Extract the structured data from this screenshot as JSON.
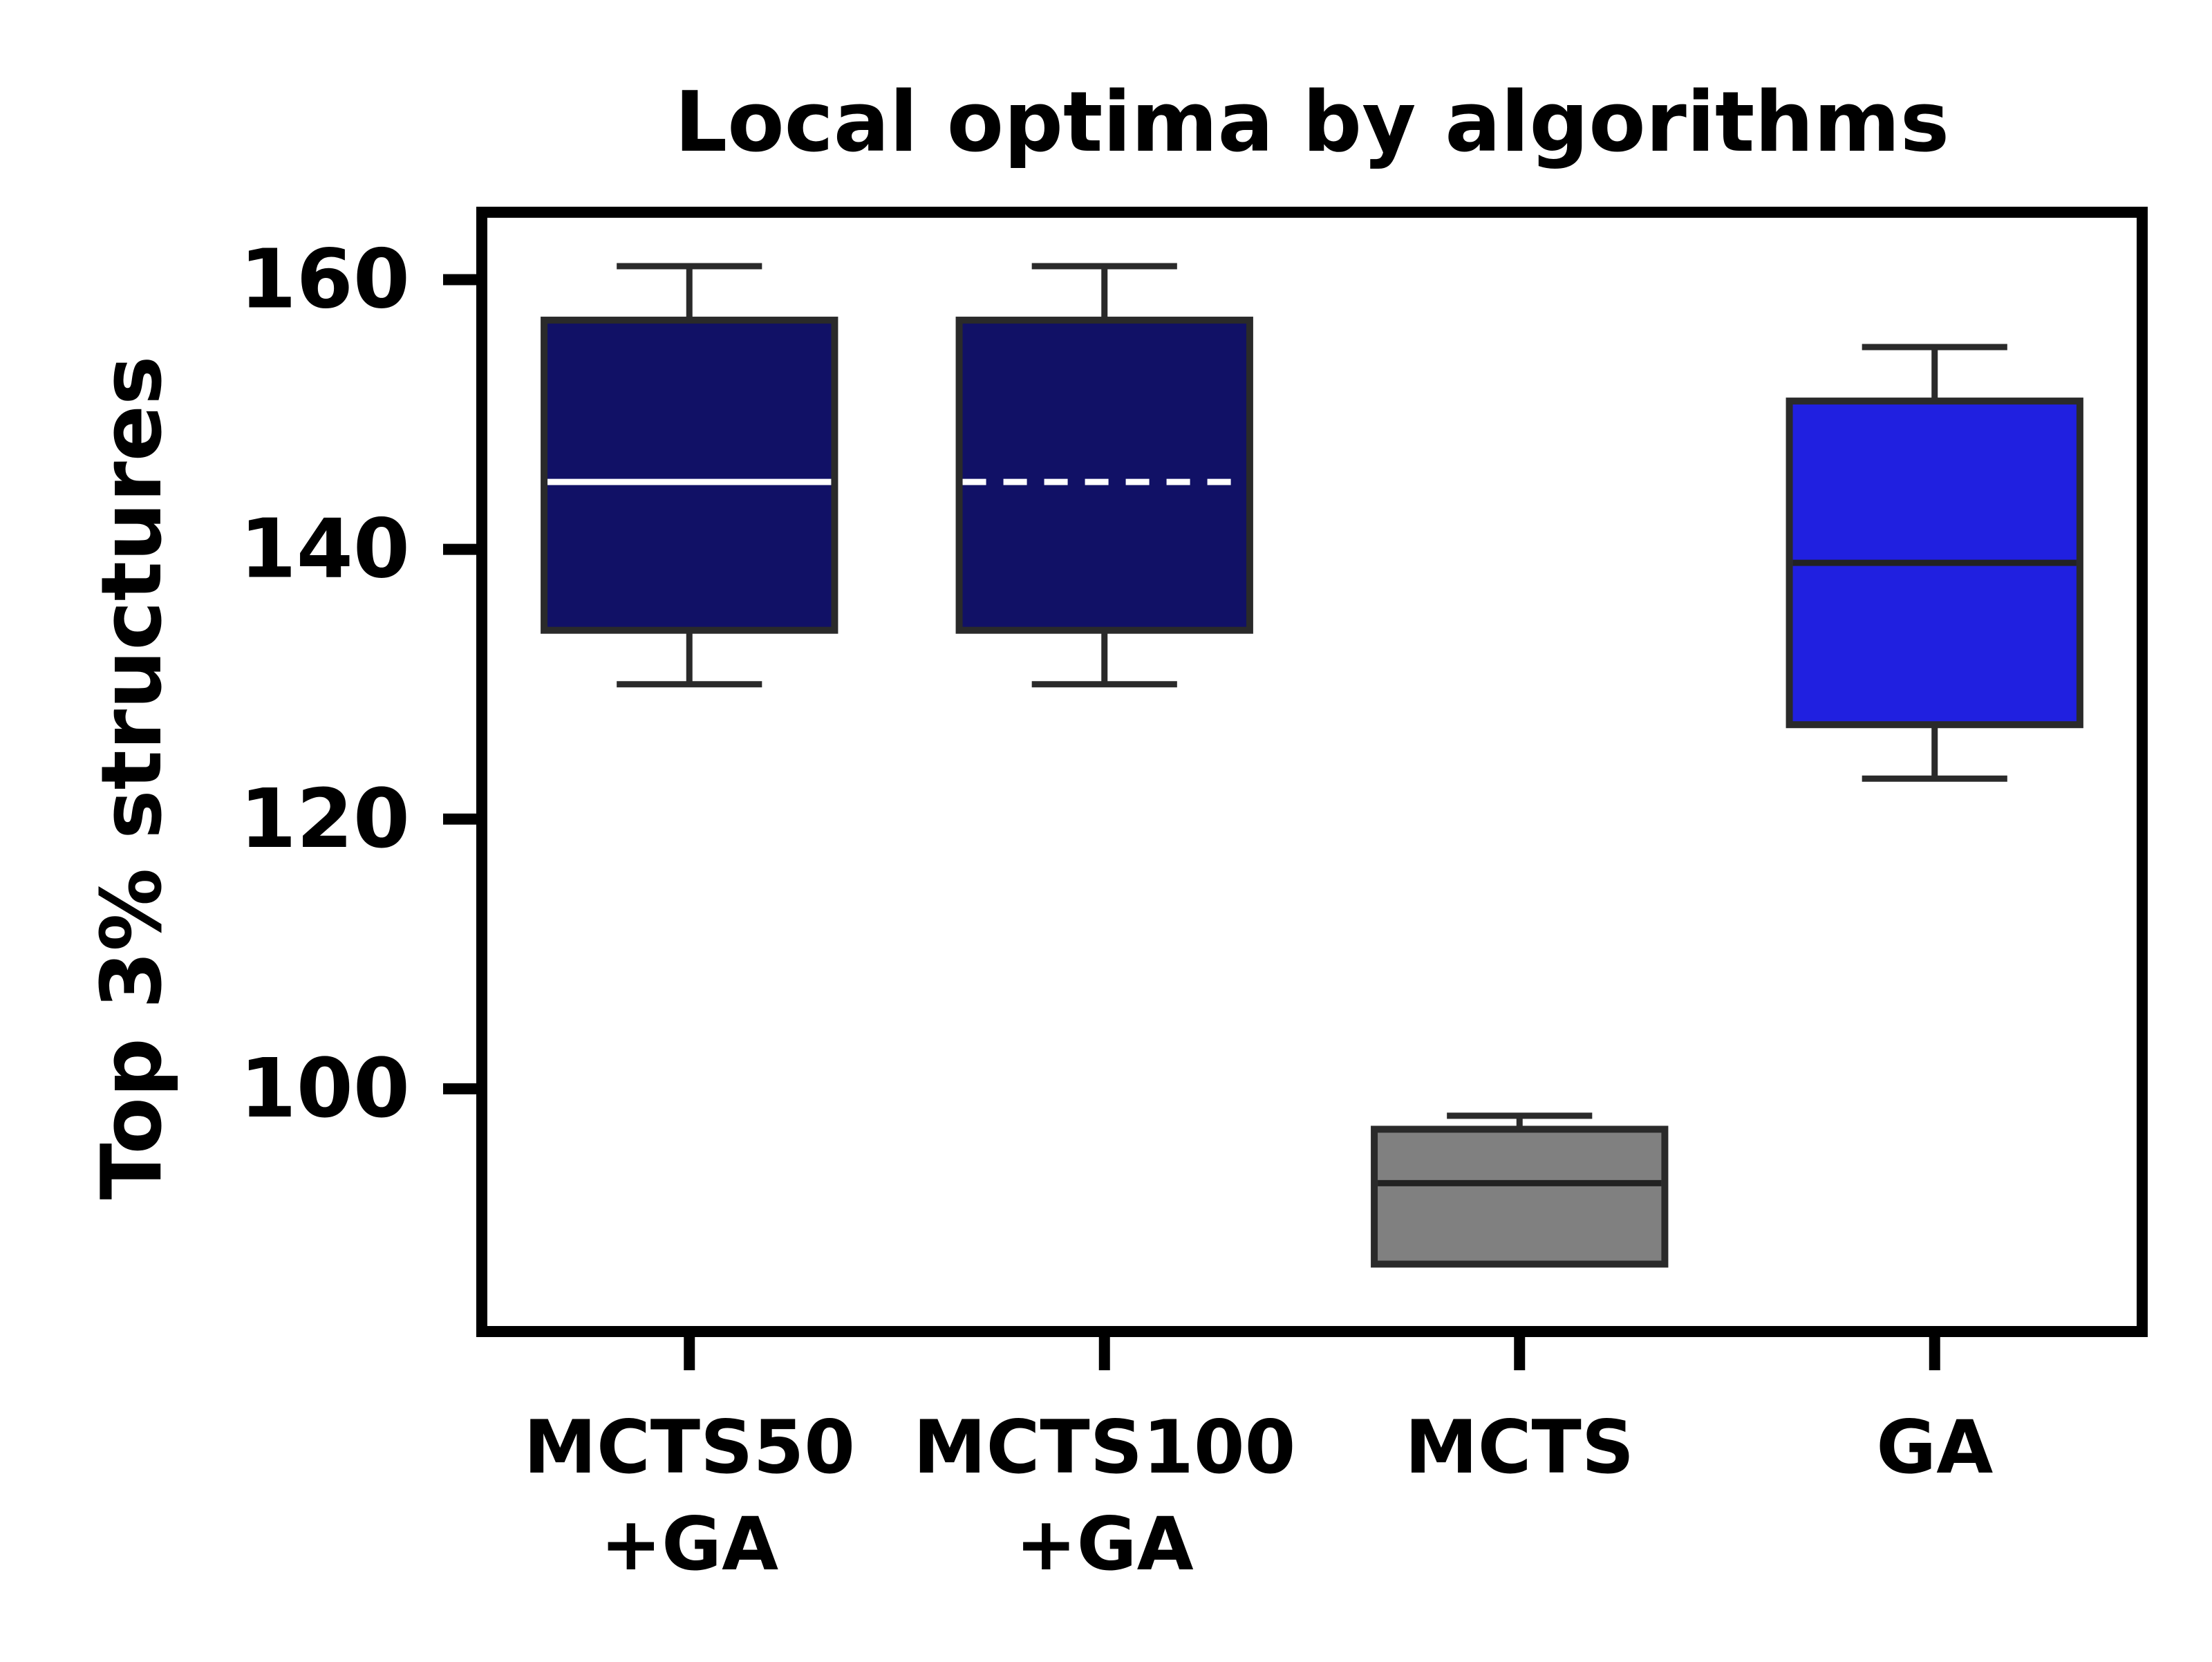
{
  "chart_data": {
    "type": "box",
    "title": "Local optima by algorithms",
    "xlabel": "",
    "ylabel": "Top 3% structures",
    "ylim": [
      82,
      165
    ],
    "yticks": [
      100,
      120,
      140,
      160
    ],
    "grid": false,
    "categories": [
      {
        "label_lines": [
          "MCTS50",
          "+GA"
        ],
        "label": "MCTS50 +GA"
      },
      {
        "label_lines": [
          "MCTS100",
          "+GA"
        ],
        "label": "MCTS100 +GA"
      },
      {
        "label_lines": [
          "MCTS"
        ],
        "label": "MCTS"
      },
      {
        "label_lines": [
          "GA"
        ],
        "label": "GA"
      }
    ],
    "boxes": [
      {
        "whisker_low": 130,
        "q1": 134,
        "median": 145,
        "q3": 157,
        "whisker_high": 161,
        "color": "#111166",
        "median_color": "#ffffff",
        "median_style": "solid"
      },
      {
        "whisker_low": 130,
        "q1": 134,
        "median": 145,
        "q3": 157,
        "whisker_high": 161,
        "color": "#111166",
        "median_color": "#ffffff",
        "median_style": "dashed"
      },
      {
        "whisker_low": 87,
        "q1": 87,
        "median": 93,
        "q3": 97,
        "whisker_high": 98,
        "color": "#808080",
        "median_color": "#222222",
        "median_style": "solid"
      },
      {
        "whisker_low": 123,
        "q1": 127,
        "median": 139,
        "q3": 151,
        "whisker_high": 155,
        "color": "#2020e0",
        "median_color": "#222222",
        "median_style": "solid"
      }
    ],
    "edge_color": "#2a2a2a"
  }
}
